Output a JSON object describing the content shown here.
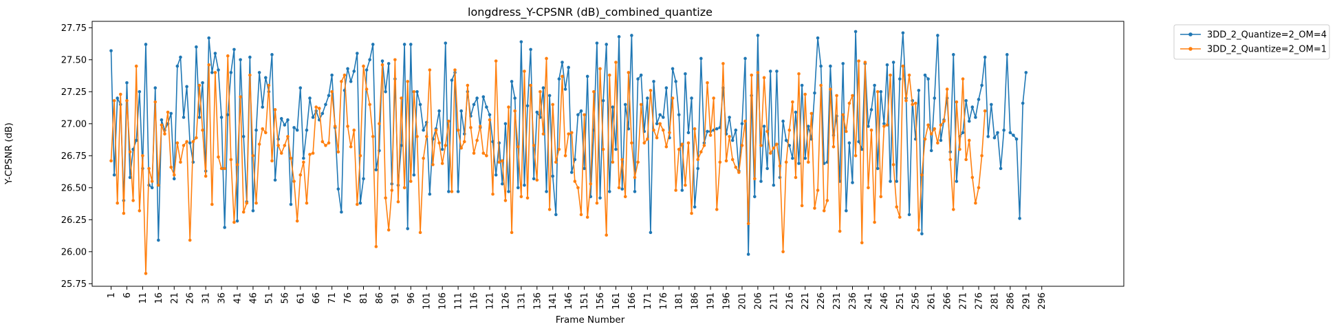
{
  "chart_data": {
    "type": "line",
    "title": "longdress_Y-CPSNR (dB)_combined_quantize",
    "xlabel": "Frame Number",
    "ylabel": "Y-CPSNR (dB)",
    "xlim": [
      -5,
      322
    ],
    "ylim": [
      25.73,
      27.8
    ],
    "grid": false,
    "legend_position": "outside-top-right",
    "xticks": [
      1,
      6,
      11,
      16,
      21,
      26,
      31,
      36,
      41,
      46,
      51,
      56,
      61,
      66,
      71,
      76,
      81,
      86,
      91,
      96,
      101,
      106,
      111,
      116,
      121,
      126,
      131,
      136,
      141,
      146,
      151,
      156,
      161,
      166,
      171,
      176,
      181,
      186,
      191,
      196,
      201,
      206,
      211,
      216,
      221,
      226,
      231,
      236,
      241,
      246,
      251,
      256,
      261,
      266,
      271,
      276,
      281,
      286,
      291,
      296
    ],
    "yticks": [
      "25.75",
      "26.00",
      "26.25",
      "26.50",
      "26.75",
      "27.00",
      "27.25",
      "27.50",
      "27.75"
    ],
    "x_start": 1,
    "series": [
      {
        "name": "3DD_2_Quantize=2_OM=4",
        "color": "#1f77b4",
        "values": [
          27.57,
          26.6,
          27.2,
          27.15,
          26.4,
          27.32,
          26.58,
          26.8,
          26.87,
          27.25,
          26.65,
          27.62,
          26.52,
          26.5,
          27.28,
          26.09,
          27.03,
          26.95,
          27.0,
          27.08,
          26.57,
          27.45,
          27.52,
          27.05,
          27.29,
          26.85,
          26.7,
          27.6,
          27.05,
          27.32,
          26.63,
          27.67,
          27.4,
          27.55,
          27.42,
          27.05,
          26.19,
          27.07,
          27.4,
          27.58,
          26.24,
          27.5,
          26.9,
          26.39,
          27.52,
          26.32,
          26.95,
          27.4,
          27.13,
          27.36,
          27.25,
          27.54,
          26.56,
          26.88,
          27.04,
          26.99,
          27.03,
          26.37,
          26.97,
          26.95,
          27.28,
          26.73,
          26.95,
          27.2,
          27.05,
          27.1,
          27.03,
          27.08,
          27.15,
          27.22,
          27.38,
          26.97,
          26.49,
          26.31,
          27.26,
          27.43,
          27.33,
          27.41,
          27.55,
          26.38,
          26.57,
          27.42,
          27.5,
          27.62,
          26.64,
          26.79,
          27.49,
          27.25,
          27.47,
          26.53,
          27.35,
          26.52,
          26.83,
          27.62,
          26.18,
          27.62,
          26.6,
          27.25,
          27.15,
          26.95,
          27.01,
          26.45,
          26.88,
          26.96,
          27.1,
          26.8,
          27.63,
          26.47,
          27.34,
          27.4,
          26.47,
          27.1,
          26.92,
          27.25,
          27.06,
          27.15,
          27.2,
          26.97,
          27.21,
          27.13,
          27.07,
          26.86,
          26.6,
          26.85,
          26.53,
          27.0,
          26.47,
          27.33,
          27.2,
          26.5,
          27.64,
          26.52,
          27.14,
          27.58,
          26.57,
          27.09,
          27.05,
          27.28,
          26.47,
          27.22,
          26.59,
          26.29,
          27.35,
          27.48,
          27.27,
          27.44,
          26.62,
          26.72,
          27.07,
          27.1,
          26.65,
          27.37,
          26.43,
          26.95,
          27.63,
          26.42,
          27.18,
          27.62,
          26.47,
          27.13,
          26.8,
          27.68,
          26.49,
          27.15,
          26.96,
          27.69,
          26.47,
          27.35,
          27.38,
          26.94,
          27.2,
          26.15,
          27.33,
          27.0,
          27.07,
          27.05,
          27.28,
          26.89,
          27.43,
          27.33,
          27.07,
          26.48,
          27.39,
          26.93,
          27.2,
          26.35,
          26.65,
          27.51,
          26.85,
          26.94,
          26.94,
          26.95,
          26.96,
          26.97,
          27.28,
          26.92,
          27.05,
          26.87,
          26.95,
          26.63,
          27.0,
          27.51,
          25.98,
          27.22,
          26.43,
          27.69,
          26.55,
          26.98,
          26.65,
          27.41,
          26.52,
          27.41,
          26.58,
          27.02,
          26.87,
          26.83,
          26.73,
          27.09,
          26.69,
          27.3,
          26.73,
          26.98,
          26.88,
          27.24,
          27.67,
          27.45,
          26.69,
          26.7,
          27.45,
          26.91,
          27.06,
          26.55,
          27.47,
          26.32,
          26.85,
          26.54,
          27.72,
          26.86,
          26.8,
          27.47,
          26.98,
          27.11,
          27.3,
          26.65,
          27.25,
          27.0,
          27.46,
          26.55,
          27.48,
          26.55,
          27.35,
          27.71,
          27.2,
          26.29,
          27.18,
          26.88,
          27.26,
          26.14,
          27.38,
          27.35,
          26.79,
          27.2,
          27.69,
          26.87,
          27.03,
          27.2,
          26.78,
          27.54,
          26.55,
          26.9,
          26.93,
          27.18,
          27.02,
          27.13,
          27.05,
          27.19,
          27.3,
          27.52,
          26.9,
          27.15,
          26.89,
          26.93,
          26.65,
          26.95,
          27.54,
          26.93,
          26.91,
          26.88,
          26.26,
          27.16,
          27.4
        ]
      },
      {
        "name": "3DD_2_Quantize=2_OM=1",
        "color": "#ff7f0e",
        "values": [
          26.71,
          27.18,
          26.38,
          27.23,
          26.3,
          27.18,
          26.78,
          26.4,
          27.45,
          26.32,
          26.75,
          25.83,
          26.65,
          26.55,
          27.17,
          26.52,
          26.99,
          26.92,
          27.09,
          26.66,
          26.6,
          26.85,
          26.7,
          26.83,
          26.86,
          26.09,
          26.86,
          26.89,
          27.3,
          26.95,
          26.59,
          27.46,
          26.37,
          27.4,
          26.74,
          26.65,
          26.65,
          27.53,
          26.72,
          26.23,
          26.68,
          27.21,
          26.31,
          26.38,
          27.38,
          26.75,
          26.38,
          26.84,
          26.96,
          26.93,
          27.3,
          26.71,
          27.11,
          26.83,
          26.77,
          26.83,
          26.9,
          26.73,
          26.55,
          26.24,
          26.6,
          26.7,
          26.38,
          26.76,
          26.77,
          27.13,
          27.12,
          26.86,
          26.83,
          26.85,
          27.25,
          26.98,
          26.78,
          27.33,
          27.38,
          26.98,
          26.82,
          26.95,
          26.37,
          26.75,
          27.45,
          27.27,
          27.15,
          26.9,
          26.04,
          27.0,
          27.46,
          26.42,
          26.17,
          26.48,
          27.5,
          26.39,
          27.2,
          26.5,
          27.33,
          26.55,
          27.25,
          26.9,
          26.15,
          26.73,
          26.9,
          27.42,
          26.68,
          26.95,
          26.85,
          26.69,
          26.83,
          27.02,
          26.47,
          27.42,
          26.95,
          26.81,
          26.86,
          27.3,
          26.97,
          26.77,
          26.87,
          26.98,
          26.77,
          26.75,
          27.03,
          26.45,
          27.49,
          26.7,
          26.71,
          26.4,
          27.13,
          26.15,
          27.1,
          26.82,
          26.43,
          27.41,
          26.42,
          27.3,
          26.83,
          26.56,
          27.25,
          26.92,
          27.51,
          26.33,
          27.15,
          26.7,
          26.8,
          27.37,
          26.75,
          26.92,
          26.93,
          26.55,
          26.5,
          26.29,
          27.07,
          26.27,
          26.53,
          27.25,
          26.38,
          27.43,
          26.8,
          26.13,
          27.38,
          26.7,
          27.48,
          26.5,
          26.72,
          26.43,
          27.4,
          26.85,
          26.58,
          26.7,
          27.15,
          26.85,
          26.88,
          27.26,
          26.95,
          26.89,
          27.0,
          26.95,
          26.82,
          26.93,
          27.2,
          26.48,
          26.8,
          26.84,
          26.52,
          26.85,
          26.3,
          26.96,
          26.72,
          26.78,
          26.83,
          27.32,
          26.91,
          27.2,
          26.33,
          26.7,
          27.47,
          26.71,
          26.9,
          26.72,
          26.66,
          26.62,
          26.83,
          27.02,
          26.22,
          27.38,
          26.57,
          27.4,
          26.83,
          27.36,
          26.94,
          26.77,
          26.81,
          26.84,
          26.67,
          26.0,
          26.7,
          26.95,
          27.17,
          26.58,
          27.39,
          26.36,
          27.23,
          26.7,
          27.08,
          26.34,
          26.48,
          27.3,
          26.32,
          26.4,
          27.27,
          26.82,
          27.22,
          26.16,
          27.07,
          26.94,
          27.16,
          27.22,
          26.75,
          27.49,
          26.07,
          27.48,
          26.5,
          26.95,
          26.23,
          27.25,
          26.43,
          26.98,
          26.99,
          27.38,
          26.68,
          26.35,
          26.27,
          27.45,
          27.18,
          27.38,
          27.15,
          27.16,
          26.17,
          26.6,
          26.88,
          26.99,
          26.92,
          26.96,
          26.85,
          26.99,
          27.02,
          27.27,
          26.72,
          26.33,
          27.17,
          26.8,
          27.35,
          26.72,
          26.87,
          26.58,
          26.38,
          26.5,
          26.75,
          27.1
        ]
      }
    ]
  }
}
